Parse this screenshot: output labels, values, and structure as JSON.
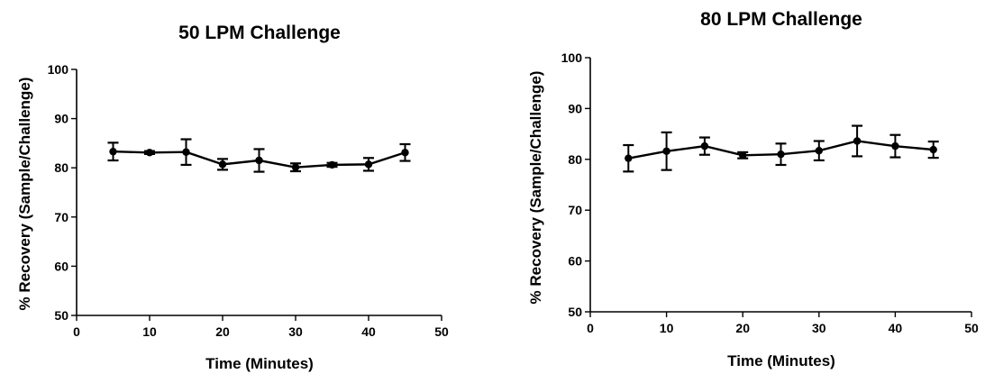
{
  "chart_data": [
    {
      "type": "line",
      "title": "50 LPM Challenge",
      "xlabel": "Time (Minutes)",
      "ylabel": "% Recovery (Sample/Challenge)",
      "xlim": [
        0,
        50
      ],
      "ylim": [
        50,
        100
      ],
      "xticks": [
        "0",
        "10",
        "20",
        "30",
        "40",
        "50"
      ],
      "yticks": [
        "50",
        "60",
        "70",
        "80",
        "90",
        "100"
      ],
      "grid": false,
      "series": [
        {
          "x": [
            5,
            10,
            15,
            20,
            25,
            30,
            35,
            40,
            45
          ],
          "y": [
            83.3,
            83.1,
            83.2,
            80.7,
            81.5,
            80.1,
            80.6,
            80.7,
            83.1
          ],
          "error": [
            1.8,
            0.3,
            2.6,
            1.1,
            2.3,
            0.8,
            0.4,
            1.3,
            1.7
          ]
        }
      ]
    },
    {
      "type": "line",
      "title": "80 LPM Challenge",
      "xlabel": "Time (Minutes)",
      "ylabel": "% Recovery (Sample/Challenge)",
      "xlim": [
        0,
        50
      ],
      "ylim": [
        50,
        100
      ],
      "xticks": [
        "0",
        "10",
        "20",
        "30",
        "40",
        "50"
      ],
      "yticks": [
        "50",
        "60",
        "70",
        "80",
        "90",
        "100"
      ],
      "grid": false,
      "series": [
        {
          "x": [
            5,
            10,
            15,
            20,
            25,
            30,
            35,
            40,
            45
          ],
          "y": [
            80.2,
            81.6,
            82.6,
            80.8,
            81.0,
            81.7,
            83.6,
            82.6,
            81.9
          ],
          "error": [
            2.6,
            3.7,
            1.7,
            0.6,
            2.1,
            1.9,
            3.0,
            2.2,
            1.6
          ]
        }
      ]
    }
  ]
}
